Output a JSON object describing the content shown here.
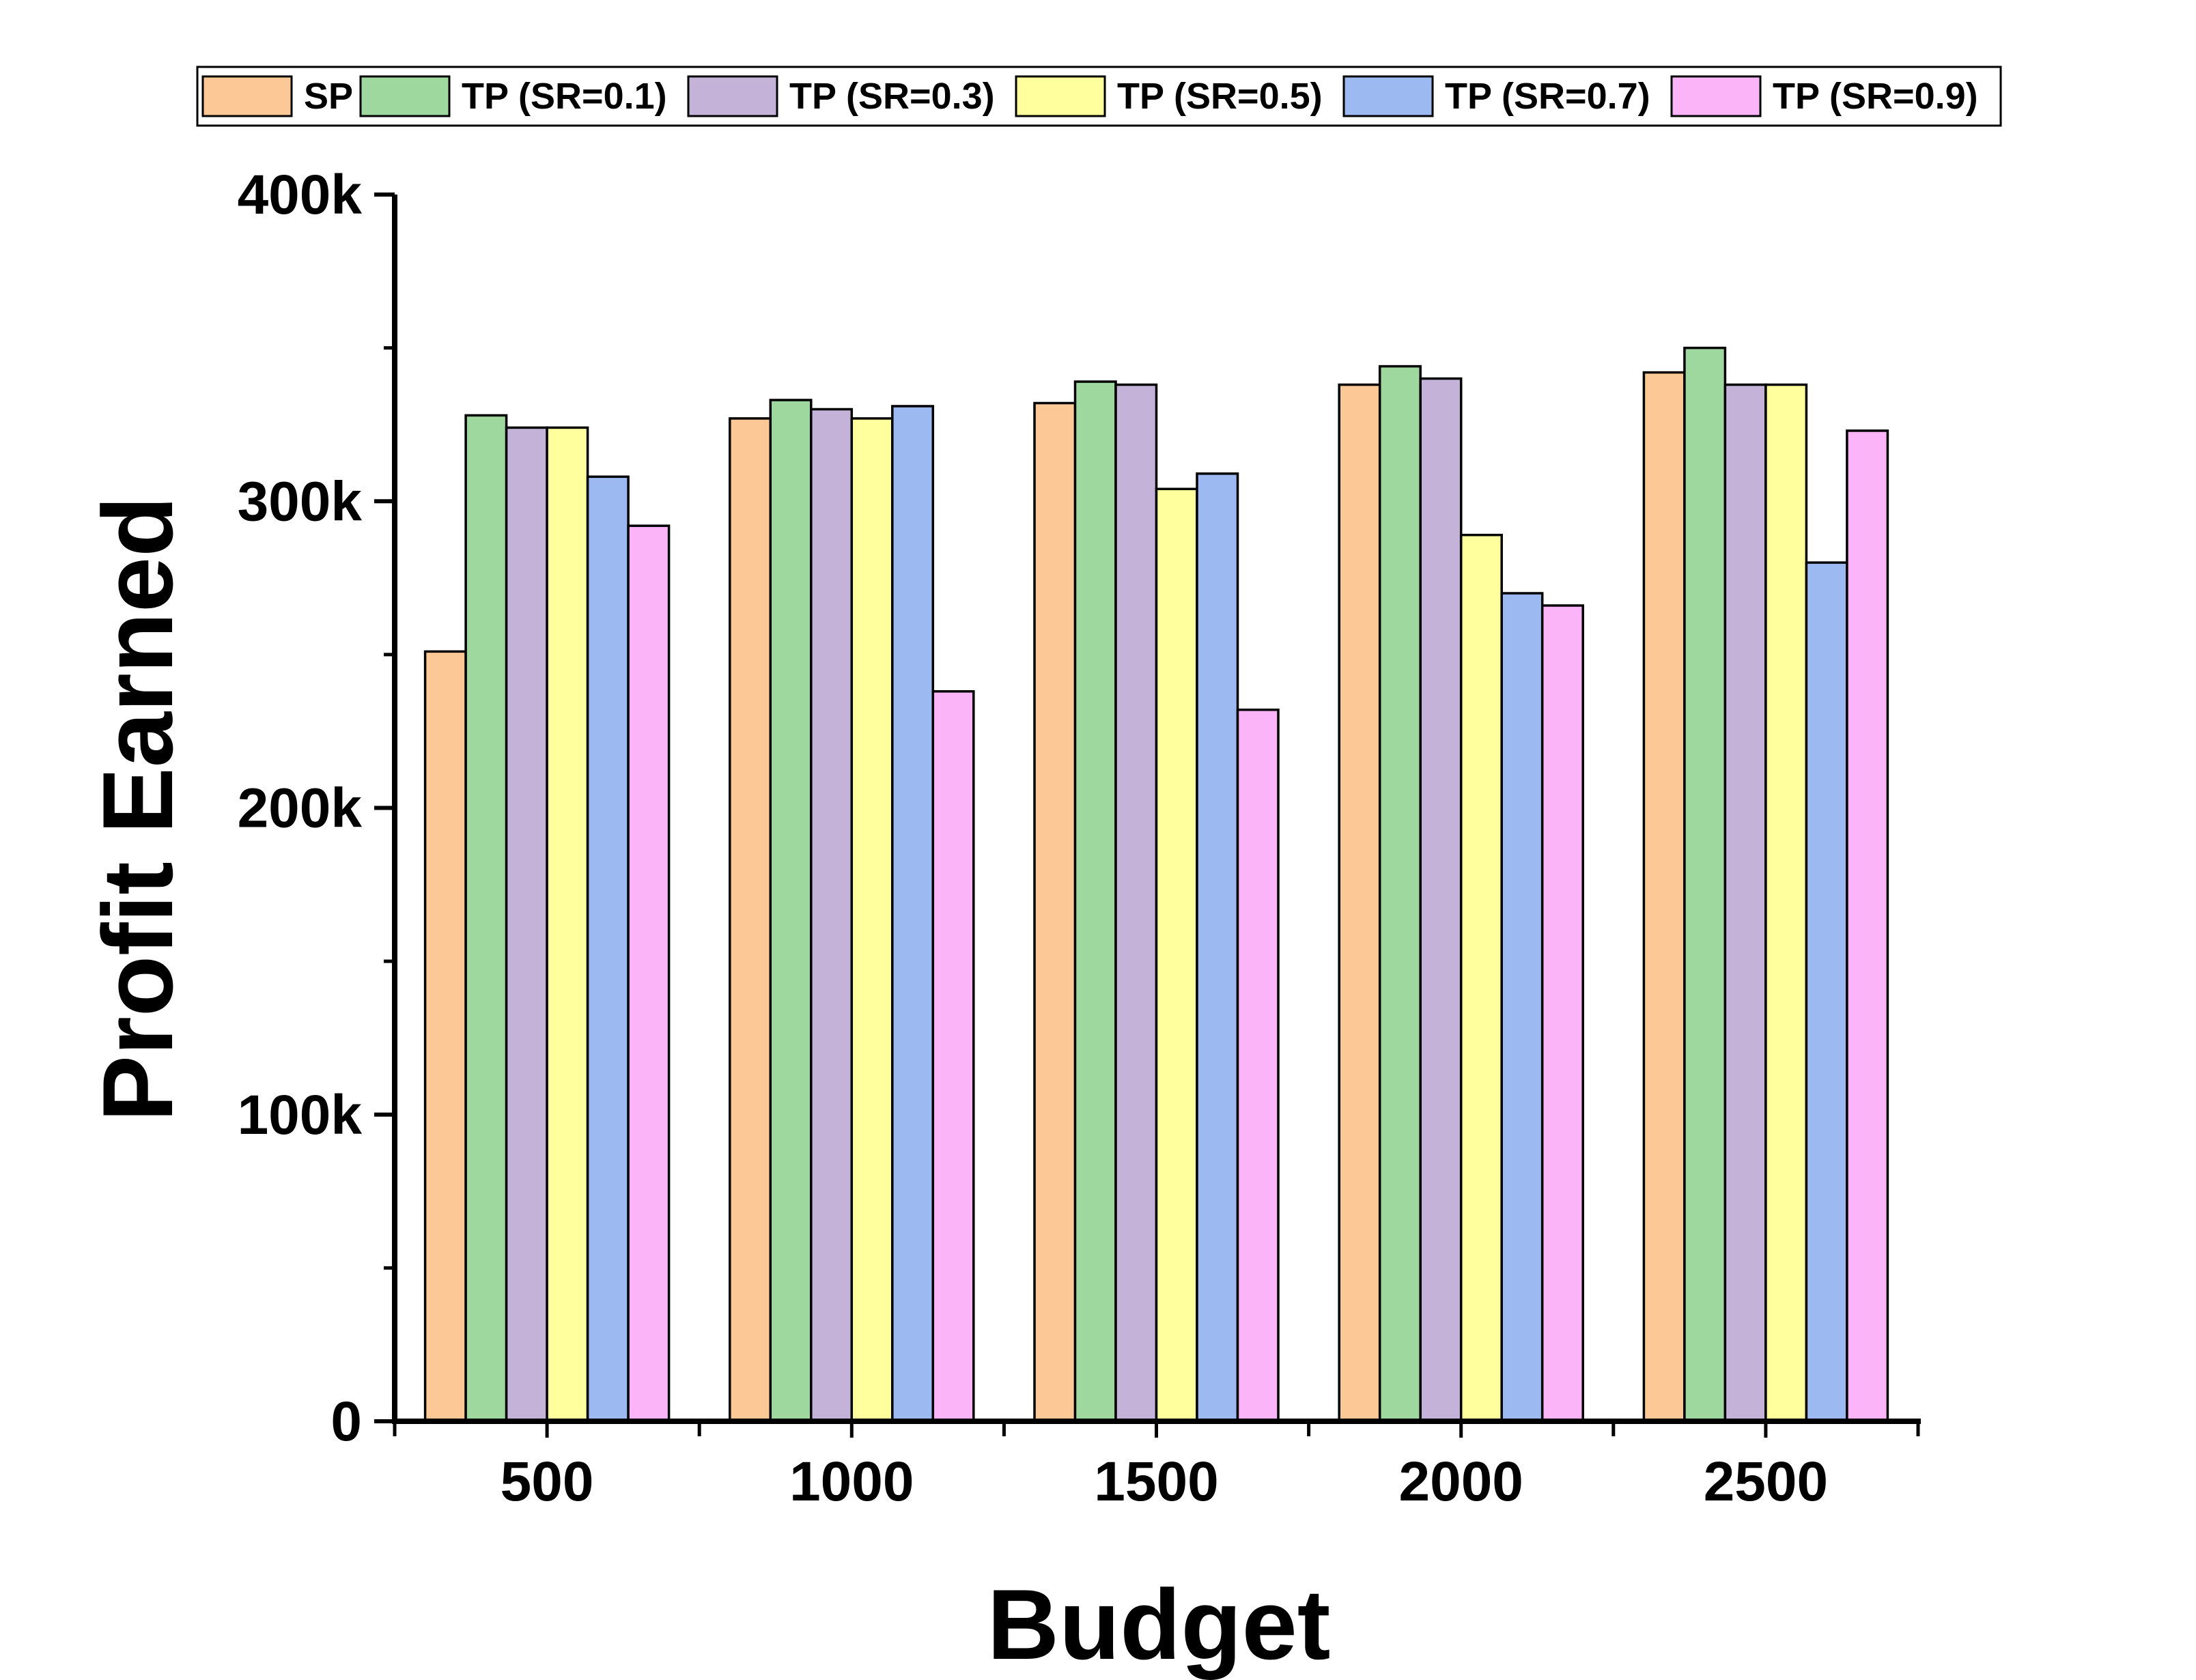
{
  "chart_data": {
    "type": "bar",
    "categories": [
      "500",
      "1000",
      "1500",
      "2000",
      "2500"
    ],
    "xlabel": "Budget",
    "ylabel": "Profit Earned",
    "ylim": [
      0,
      400000
    ],
    "yticks": [
      0,
      100000,
      200000,
      300000,
      400000
    ],
    "ytick_labels": [
      "0",
      "100k",
      "200k",
      "300k",
      "400k"
    ],
    "grid": false,
    "legend_position": "top",
    "series": [
      {
        "name": "SP",
        "color": "#FCC996",
        "values": [
          251000,
          327000,
          332000,
          338000,
          342000
        ]
      },
      {
        "name": "TP (SR=0.1)",
        "color": "#9FD89E",
        "values": [
          328000,
          333000,
          339000,
          344000,
          350000
        ]
      },
      {
        "name": "TP (SR=0.3)",
        "color": "#C4B2D9",
        "values": [
          324000,
          330000,
          338000,
          340000,
          338000
        ]
      },
      {
        "name": "TP (SR=0.5)",
        "color": "#FFFF9E",
        "values": [
          324000,
          327000,
          304000,
          289000,
          338000
        ]
      },
      {
        "name": "TP (SR=0.7)",
        "color": "#9DB9F2",
        "values": [
          308000,
          331000,
          309000,
          270000,
          280000
        ]
      },
      {
        "name": "TP (SR=0.9)",
        "color": "#FBB4F7",
        "values": [
          292000,
          238000,
          232000,
          266000,
          323000
        ]
      }
    ]
  }
}
